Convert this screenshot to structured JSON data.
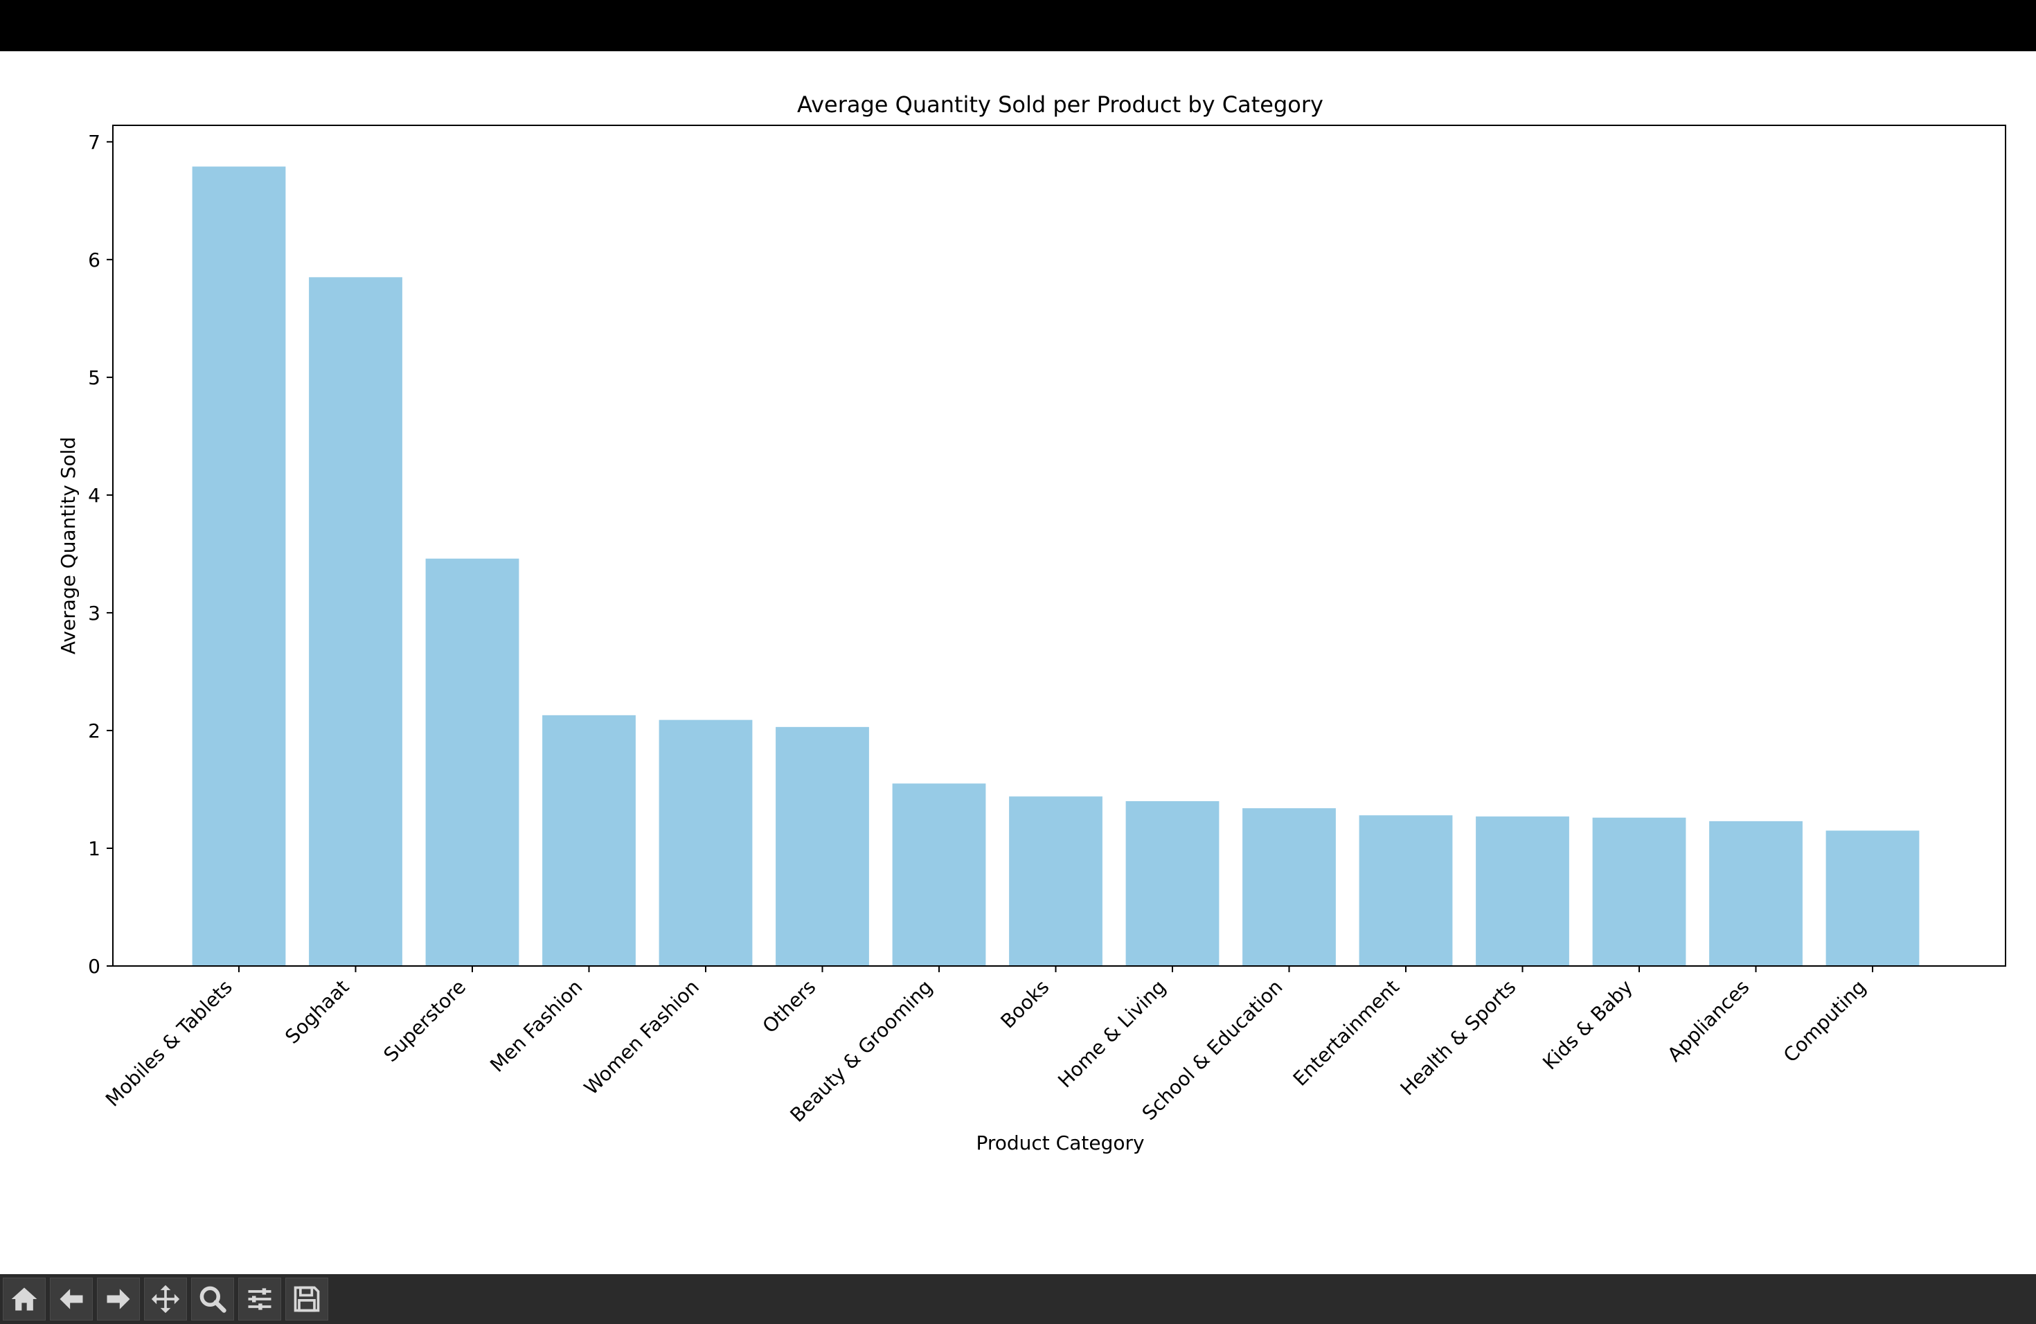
{
  "colors": {
    "bar": "#97cbe6",
    "frame": "#000000",
    "toolbar_bg": "#2b2b2b",
    "top_bar": "#000000"
  },
  "toolbar": {
    "buttons": [
      {
        "name": "home-icon",
        "label": "Home"
      },
      {
        "name": "back-arrow-icon",
        "label": "Back"
      },
      {
        "name": "forward-arrow-icon",
        "label": "Forward"
      },
      {
        "name": "pan-icon",
        "label": "Pan"
      },
      {
        "name": "zoom-icon",
        "label": "Zoom"
      },
      {
        "name": "configure-subplots-icon",
        "label": "Configure subplots"
      },
      {
        "name": "save-icon",
        "label": "Save"
      }
    ]
  },
  "chart_data": {
    "type": "bar",
    "title": "Average Quantity Sold per Product by Category",
    "xlabel": "Product Category",
    "ylabel": "Average Quantity Sold",
    "ylim": [
      0,
      7.14
    ],
    "yticks": [
      0,
      1,
      2,
      3,
      4,
      5,
      6,
      7
    ],
    "grid": false,
    "categories": [
      "Mobiles & Tablets",
      "Soghaat",
      "Superstore",
      "Men Fashion",
      "Women Fashion",
      "Others",
      "Beauty & Grooming",
      "Books",
      "Home & Living",
      "School & Education",
      "Entertainment",
      "Health & Sports",
      "Kids & Baby",
      "Appliances",
      "Computing"
    ],
    "values": [
      6.79,
      5.85,
      3.46,
      2.13,
      2.09,
      2.03,
      1.55,
      1.44,
      1.4,
      1.34,
      1.28,
      1.27,
      1.26,
      1.23,
      1.15
    ]
  }
}
